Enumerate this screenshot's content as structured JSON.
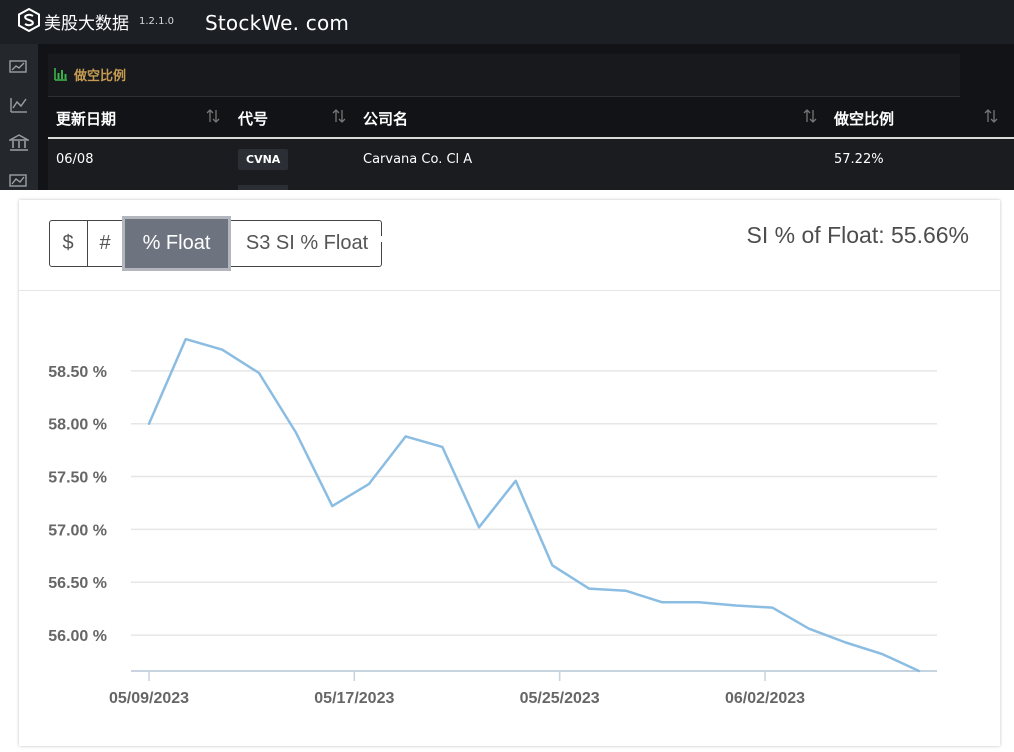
{
  "topbar": {
    "app_name": "美股大数据",
    "app_version": "1.2.1.0",
    "site_name": "StockWe. com"
  },
  "sidebar": {
    "icons": [
      "stock-chart-icon",
      "line-chart-icon",
      "bank-icon",
      "trend-chart-icon"
    ]
  },
  "panel": {
    "title": "做空比例",
    "columns": [
      "更新日期",
      "代号",
      "公司名",
      "做空比例"
    ],
    "rows": [
      {
        "date": "06/08",
        "ticker": "CVNA",
        "company": "Carvana Co. Cl A",
        "short_ratio": "57.22%"
      }
    ]
  },
  "card": {
    "buttons": [
      "$",
      "#",
      "% Float",
      "S3 SI % Float"
    ],
    "active_button": "% Float",
    "stat_text": "SI % of Float: 55.66%"
  },
  "colors": {
    "line": "#8bbde3",
    "active_button": "#6d7480",
    "panel_title": "#c59b52"
  },
  "chart_data": {
    "type": "line",
    "title": "",
    "xlabel": "",
    "ylabel": "",
    "ylim": [
      55.66,
      59.0
    ],
    "xlim": [
      "2023-05-09",
      "2023-06-08"
    ],
    "x_ticks": [
      "05/09/2023",
      "05/17/2023",
      "05/25/2023",
      "06/02/2023"
    ],
    "y_ticks": [
      56.0,
      56.5,
      57.0,
      57.5,
      58.0,
      58.5
    ],
    "y_tick_labels": [
      "56.00 %",
      "56.50 %",
      "57.00 %",
      "57.50 %",
      "58.00 %",
      "58.50 %"
    ],
    "grid": true,
    "series": [
      {
        "x": [
          "2023-05-09",
          "2023-05-10",
          "2023-05-11",
          "2023-05-12",
          "2023-05-15",
          "2023-05-16",
          "2023-05-17",
          "2023-05-18",
          "2023-05-19",
          "2023-05-22",
          "2023-05-23",
          "2023-05-24",
          "2023-05-25",
          "2023-05-26",
          "2023-05-30",
          "2023-05-31",
          "2023-06-01",
          "2023-06-02",
          "2023-06-05",
          "2023-06-06",
          "2023-06-07",
          "2023-06-08"
        ],
        "y": [
          58.0,
          58.8,
          58.7,
          58.48,
          57.92,
          57.22,
          57.43,
          57.88,
          57.78,
          57.02,
          57.46,
          56.66,
          56.44,
          56.42,
          56.31,
          56.31,
          56.28,
          56.26,
          56.06,
          55.93,
          55.82,
          55.66
        ]
      }
    ]
  }
}
